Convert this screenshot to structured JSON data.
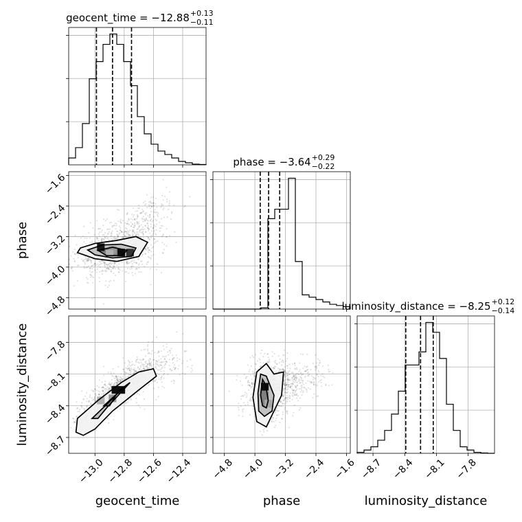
{
  "chart_data": {
    "type": "corner",
    "parameters": [
      "geocent_time",
      "phase",
      "luminosity_distance"
    ],
    "axis_labels": [
      "geocent_time",
      "phase",
      "luminosity_distance"
    ],
    "ranges": [
      [
        -13.18,
        -12.24
      ],
      [
        -5.1,
        -1.5
      ],
      [
        -8.85,
        -7.55
      ]
    ],
    "ticks": [
      [
        -13.0,
        -12.8,
        -12.6,
        -12.4
      ],
      [
        -4.8,
        -4.0,
        -3.2,
        -2.4,
        -1.6
      ],
      [
        -8.7,
        -8.4,
        -8.1,
        -7.8
      ]
    ],
    "tick_labels": [
      [
        "−13.0",
        "−12.8",
        "−12.6",
        "−12.4"
      ],
      [
        "−4.8",
        "−4.0",
        "−3.2",
        "−2.4",
        "−1.6"
      ],
      [
        "−8.7",
        "−8.4",
        "−8.1",
        "−7.8"
      ]
    ],
    "titles": [
      {
        "param": "geocent_time",
        "text": "geocent_time = −12.88",
        "plus": "+0.13",
        "minus": "−0.11"
      },
      {
        "param": "phase",
        "text": "phase = −3.64",
        "plus": "+0.29",
        "minus": "−0.22"
      },
      {
        "param": "luminosity_distance",
        "text": "luminosity_distance = −8.25",
        "plus": "+0.12",
        "minus": "−0.14"
      }
    ],
    "quantiles": [
      [
        -12.99,
        -12.88,
        -12.75
      ],
      [
        -3.86,
        -3.64,
        -3.35
      ],
      [
        -8.39,
        -8.25,
        -8.13
      ]
    ],
    "histograms": [
      {
        "edges_range": [
          -13.18,
          -12.24
        ],
        "counts": [
          2,
          5,
          12,
          25,
          30,
          35,
          38,
          35,
          30,
          23,
          14,
          9,
          6,
          4,
          3,
          2,
          1,
          0.6,
          0.2,
          0.1
        ]
      },
      {
        "edges_range": [
          -5.1,
          -1.5
        ],
        "counts": [
          0,
          0,
          0,
          0,
          0,
          0,
          0,
          0.5,
          38,
          42,
          42,
          55,
          20,
          6,
          5,
          4,
          3,
          2,
          1.5,
          1
        ]
      },
      {
        "edges_range": [
          -8.85,
          -7.55
        ],
        "counts": [
          0.3,
          1,
          2,
          4,
          7,
          12,
          19,
          27,
          27,
          31,
          40,
          37,
          29,
          15,
          7,
          2,
          1,
          0.3,
          0.1,
          0
        ]
      }
    ],
    "contours_2d": [
      {
        "x": "geocent_time",
        "y": "phase",
        "levels": [
          [
            [
              -13.1,
              -3.5
            ],
            [
              -13.0,
              -3.38
            ],
            [
              -12.85,
              -3.3
            ],
            [
              -12.72,
              -3.2
            ],
            [
              -12.64,
              -3.35
            ],
            [
              -12.7,
              -3.72
            ],
            [
              -12.85,
              -3.85
            ],
            [
              -13.0,
              -3.78
            ],
            [
              -13.12,
              -3.62
            ]
          ],
          [
            [
              -13.05,
              -3.55
            ],
            [
              -12.95,
              -3.42
            ],
            [
              -12.82,
              -3.4
            ],
            [
              -12.72,
              -3.5
            ],
            [
              -12.75,
              -3.72
            ],
            [
              -12.88,
              -3.76
            ],
            [
              -13.0,
              -3.68
            ]
          ],
          [
            [
              -12.98,
              -3.56
            ],
            [
              -12.88,
              -3.48
            ],
            [
              -12.78,
              -3.56
            ],
            [
              -12.82,
              -3.7
            ],
            [
              -12.92,
              -3.7
            ]
          ]
        ]
      },
      {
        "x": "geocent_time",
        "y": "luminosity_distance",
        "levels": [
          [
            [
              -13.13,
              -8.65
            ],
            [
              -13.12,
              -8.52
            ],
            [
              -12.98,
              -8.35
            ],
            [
              -12.82,
              -8.18
            ],
            [
              -12.7,
              -8.08
            ],
            [
              -12.6,
              -8.05
            ],
            [
              -12.58,
              -8.12
            ],
            [
              -12.7,
              -8.25
            ],
            [
              -12.88,
              -8.45
            ],
            [
              -13.0,
              -8.62
            ],
            [
              -13.08,
              -8.68
            ]
          ],
          [
            [
              -13.02,
              -8.52
            ],
            [
              -12.9,
              -8.36
            ],
            [
              -12.8,
              -8.22
            ],
            [
              -12.76,
              -8.18
            ],
            [
              -12.8,
              -8.24
            ],
            [
              -12.92,
              -8.42
            ],
            [
              -12.98,
              -8.52
            ]
          ],
          [
            [
              -12.94,
              -8.4
            ],
            [
              -12.86,
              -8.3
            ],
            [
              -12.8,
              -8.22
            ],
            [
              -12.84,
              -8.26
            ],
            [
              -12.9,
              -8.4
            ]
          ]
        ]
      },
      {
        "x": "phase",
        "y": "luminosity_distance",
        "levels": [
          [
            [
              -4.05,
              -8.32
            ],
            [
              -3.95,
              -8.08
            ],
            [
              -3.7,
              -8.0
            ],
            [
              -3.5,
              -8.1
            ],
            [
              -3.25,
              -8.08
            ],
            [
              -3.3,
              -8.3
            ],
            [
              -3.5,
              -8.45
            ],
            [
              -3.7,
              -8.6
            ],
            [
              -3.95,
              -8.55
            ]
          ],
          [
            [
              -3.92,
              -8.28
            ],
            [
              -3.85,
              -8.1
            ],
            [
              -3.7,
              -8.12
            ],
            [
              -3.5,
              -8.3
            ],
            [
              -3.55,
              -8.45
            ],
            [
              -3.75,
              -8.5
            ],
            [
              -3.9,
              -8.45
            ]
          ],
          [
            [
              -3.85,
              -8.3
            ],
            [
              -3.8,
              -8.15
            ],
            [
              -3.72,
              -8.2
            ],
            [
              -3.65,
              -8.35
            ],
            [
              -3.7,
              -8.42
            ],
            [
              -3.8,
              -8.4
            ]
          ]
        ]
      }
    ],
    "density_cells": [
      {
        "x": "geocent_time",
        "y": "phase",
        "cells": [
          [
            -12.96,
            -3.48,
            0.9
          ],
          [
            -12.88,
            -3.55,
            0.4
          ],
          [
            -12.82,
            -3.62,
            0.95
          ],
          [
            -12.76,
            -3.62,
            0.8
          ],
          [
            -12.9,
            -3.65,
            0.3
          ]
        ]
      },
      {
        "x": "geocent_time",
        "y": "luminosity_distance",
        "cells": [
          [
            -12.86,
            -8.25,
            0.95
          ],
          [
            -12.82,
            -8.25,
            0.95
          ],
          [
            -12.88,
            -8.33,
            0.4
          ],
          [
            -12.96,
            -8.35,
            0.3
          ]
        ]
      },
      {
        "x": "phase",
        "y": "luminosity_distance",
        "cells": [
          [
            -3.74,
            -8.22,
            0.95
          ],
          [
            -3.74,
            -8.3,
            0.5
          ],
          [
            -3.65,
            -8.38,
            0.35
          ]
        ]
      }
    ],
    "scatter_samples": [
      {
        "x": "geocent_time",
        "y": "phase",
        "center": [
          -12.86,
          -3.58
        ],
        "spread": [
          0.14,
          0.35
        ],
        "corr": 0.35,
        "tail_to": [
          -12.55,
          -2.3
        ]
      },
      {
        "x": "geocent_time",
        "y": "luminosity_distance",
        "center": [
          -12.86,
          -8.27
        ],
        "spread": [
          0.14,
          0.16
        ],
        "corr": 0.85,
        "tail_to": [
          -12.45,
          -7.95
        ]
      },
      {
        "x": "phase",
        "y": "luminosity_distance",
        "center": [
          -3.62,
          -8.25
        ],
        "spread": [
          0.35,
          0.14
        ],
        "corr": 0.15,
        "tail_to": [
          -2.3,
          -8.1
        ]
      }
    ]
  }
}
